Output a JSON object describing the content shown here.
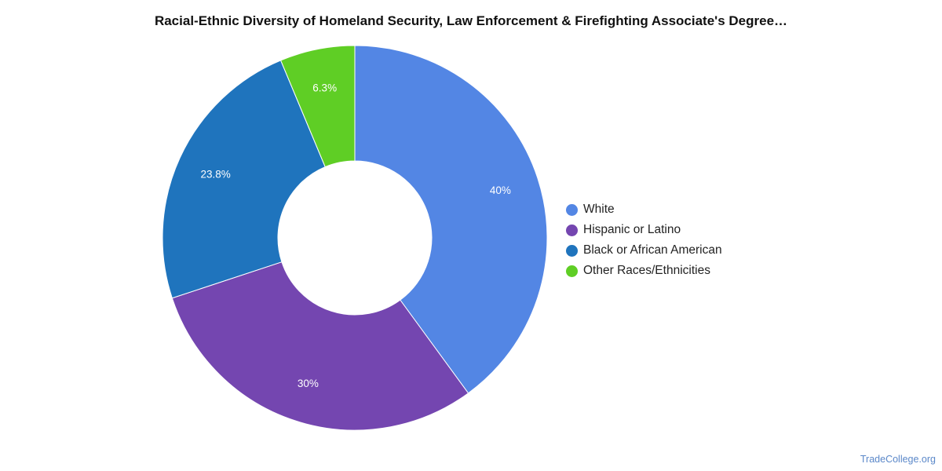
{
  "chart_data": {
    "type": "pie",
    "title": "Racial-Ethnic Diversity of Homeland Security, Law Enforcement & Firefighting Associate's Degree…",
    "categories": [
      "White",
      "Hispanic or Latino",
      "Black or African American",
      "Other Races/Ethnicities"
    ],
    "values": [
      40,
      30,
      23.8,
      6.3
    ],
    "value_labels": [
      "40%",
      "30%",
      "23.8%",
      "6.3%"
    ],
    "colors": [
      "#5386e4",
      "#7446b0",
      "#1f74bd",
      "#5fce25"
    ],
    "donut": true,
    "legend_position": "right"
  },
  "source": "TradeCollege.org"
}
